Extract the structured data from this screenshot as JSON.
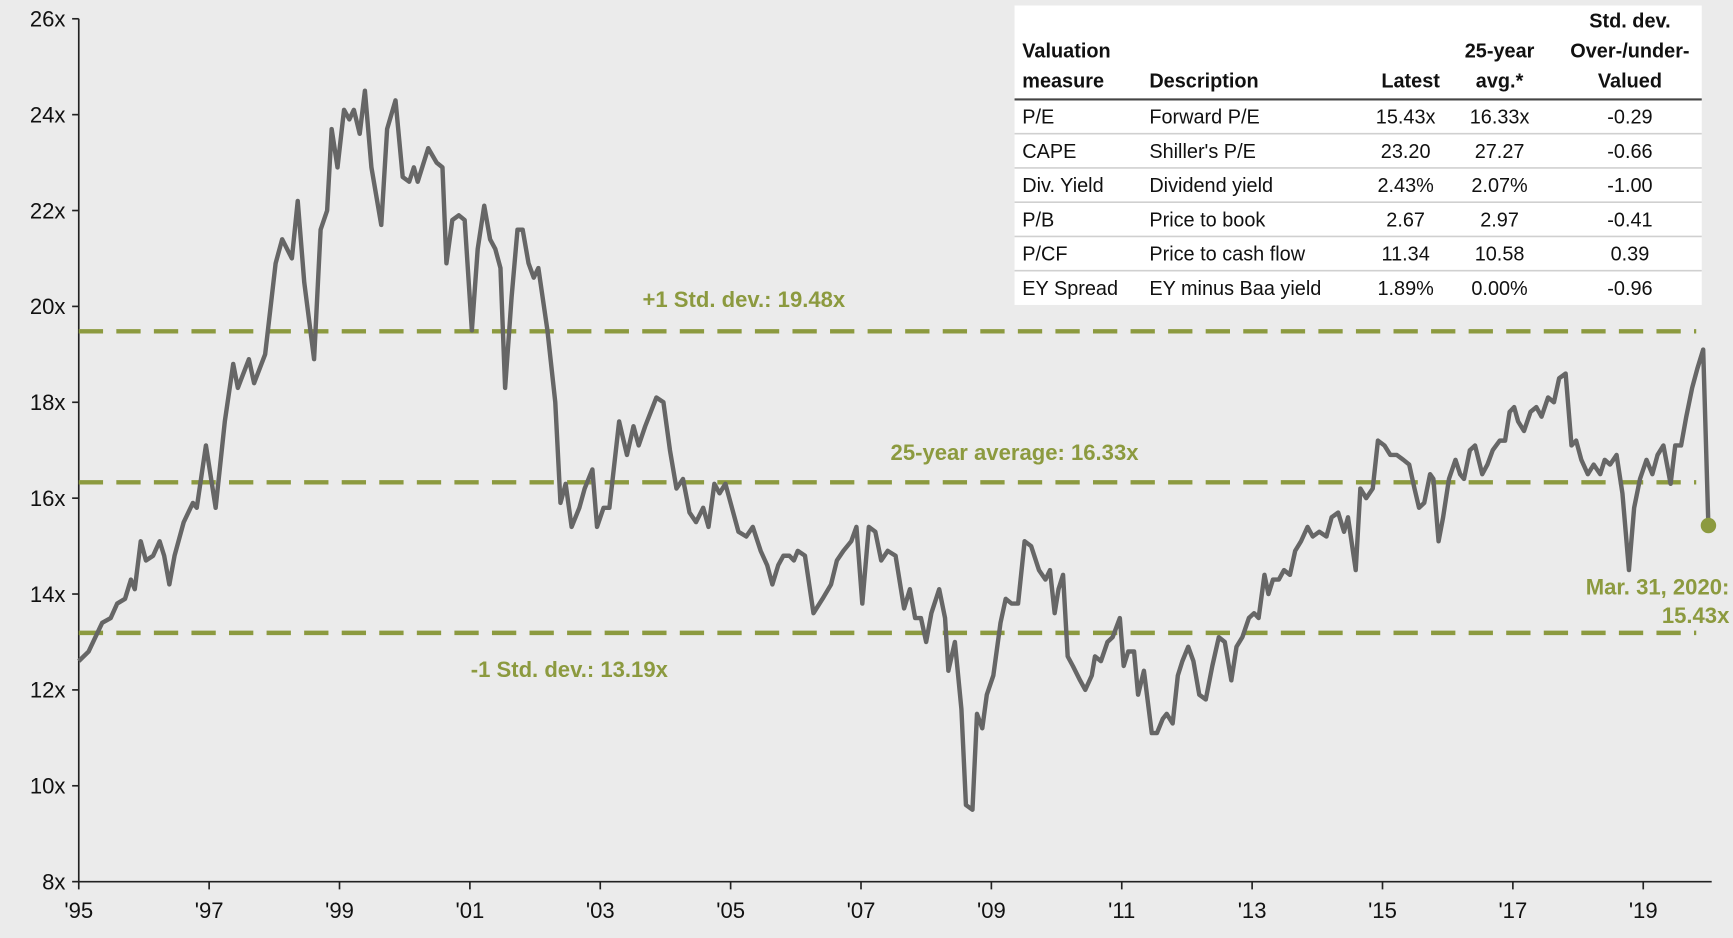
{
  "chart_data": {
    "type": "line",
    "x": [
      1995.0,
      1995.15,
      1995.36,
      1995.49,
      1995.59,
      1995.71,
      1995.8,
      1995.86,
      1995.95,
      1996.03,
      1996.14,
      1996.24,
      1996.31,
      1996.39,
      1996.47,
      1996.61,
      1996.75,
      1996.81,
      1996.95,
      1997.1,
      1997.24,
      1997.37,
      1997.44,
      1997.61,
      1997.69,
      1997.86,
      1998.02,
      1998.12,
      1998.27,
      1998.36,
      1998.46,
      1998.61,
      1998.71,
      1998.81,
      1998.88,
      1998.97,
      1999.07,
      1999.15,
      1999.22,
      1999.31,
      1999.39,
      1999.49,
      1999.64,
      1999.73,
      1999.86,
      1999.97,
      2000.07,
      2000.14,
      2000.2,
      2000.36,
      2000.49,
      2000.58,
      2000.64,
      2000.73,
      2000.83,
      2000.92,
      2001.03,
      2001.12,
      2001.22,
      2001.31,
      2001.39,
      2001.47,
      2001.54,
      2001.64,
      2001.73,
      2001.81,
      2001.9,
      2001.98,
      2002.05,
      2002.19,
      2002.31,
      2002.39,
      2002.47,
      2002.56,
      2002.68,
      2002.76,
      2002.88,
      2002.95,
      2003.05,
      2003.14,
      2003.29,
      2003.41,
      2003.51,
      2003.59,
      2003.69,
      2003.86,
      2003.97,
      2004.07,
      2004.17,
      2004.27,
      2004.37,
      2004.47,
      2004.58,
      2004.66,
      2004.75,
      2004.83,
      2004.92,
      2005.0,
      2005.12,
      2005.24,
      2005.34,
      2005.46,
      2005.56,
      2005.64,
      2005.73,
      2005.81,
      2005.9,
      2005.97,
      2006.03,
      2006.14,
      2006.27,
      2006.41,
      2006.54,
      2006.63,
      2006.73,
      2006.85,
      2006.93,
      2007.02,
      2007.12,
      2007.22,
      2007.31,
      2007.41,
      2007.53,
      2007.66,
      2007.75,
      2007.83,
      2007.92,
      2008.0,
      2008.08,
      2008.2,
      2008.29,
      2008.34,
      2008.44,
      2008.54,
      2008.61,
      2008.71,
      2008.78,
      2008.86,
      2008.93,
      2009.03,
      2009.14,
      2009.22,
      2009.31,
      2009.41,
      2009.51,
      2009.61,
      2009.73,
      2009.83,
      2009.9,
      2009.97,
      2010.03,
      2010.1,
      2010.17,
      2010.25,
      2010.36,
      2010.44,
      2010.54,
      2010.59,
      2010.68,
      2010.78,
      2010.86,
      2010.97,
      2011.03,
      2011.1,
      2011.19,
      2011.25,
      2011.34,
      2011.46,
      2011.54,
      2011.63,
      2011.69,
      2011.78,
      2011.86,
      2011.93,
      2012.02,
      2012.1,
      2012.19,
      2012.29,
      2012.39,
      2012.49,
      2012.58,
      2012.68,
      2012.76,
      2012.85,
      2012.95,
      2013.03,
      2013.1,
      2013.19,
      2013.25,
      2013.32,
      2013.41,
      2013.49,
      2013.58,
      2013.66,
      2013.75,
      2013.85,
      2013.93,
      2014.03,
      2014.14,
      2014.22,
      2014.32,
      2014.41,
      2014.47,
      2014.59,
      2014.66,
      2014.75,
      2014.85,
      2014.93,
      2015.03,
      2015.12,
      2015.22,
      2015.32,
      2015.41,
      2015.49,
      2015.56,
      2015.64,
      2015.73,
      2015.78,
      2015.86,
      2015.93,
      2016.02,
      2016.12,
      2016.19,
      2016.25,
      2016.34,
      2016.42,
      2016.53,
      2016.61,
      2016.69,
      2016.8,
      2016.88,
      2016.95,
      2017.02,
      2017.08,
      2017.17,
      2017.27,
      2017.36,
      2017.44,
      2017.54,
      2017.63,
      2017.71,
      2017.81,
      2017.9,
      2017.97,
      2018.05,
      2018.15,
      2018.24,
      2018.34,
      2018.41,
      2018.49,
      2018.59,
      2018.68,
      2018.78,
      2018.86,
      2018.95,
      2019.05,
      2019.14,
      2019.22,
      2019.31,
      2019.42,
      2019.49,
      2019.58,
      2019.66,
      2019.75,
      2019.83,
      2019.92,
      2020.0
    ],
    "values": [
      12.6,
      12.8,
      13.4,
      13.5,
      13.8,
      13.9,
      14.3,
      14.1,
      15.1,
      14.7,
      14.8,
      15.1,
      14.8,
      14.2,
      14.8,
      15.5,
      15.9,
      15.8,
      17.1,
      15.8,
      17.6,
      18.8,
      18.3,
      18.9,
      18.4,
      19.0,
      20.9,
      21.4,
      21.0,
      22.2,
      20.5,
      18.9,
      21.6,
      22.0,
      23.7,
      22.9,
      24.1,
      23.9,
      24.1,
      23.6,
      24.5,
      22.9,
      21.7,
      23.7,
      24.3,
      22.7,
      22.6,
      22.9,
      22.6,
      23.3,
      23.0,
      22.9,
      20.9,
      21.8,
      21.9,
      21.8,
      19.5,
      21.2,
      22.1,
      21.4,
      21.2,
      20.8,
      18.3,
      20.2,
      21.6,
      21.6,
      20.9,
      20.6,
      20.8,
      19.5,
      18.0,
      15.9,
      16.3,
      15.4,
      15.8,
      16.2,
      16.6,
      15.4,
      15.8,
      15.8,
      17.6,
      16.9,
      17.5,
      17.1,
      17.5,
      18.1,
      18.0,
      17.0,
      16.2,
      16.4,
      15.7,
      15.5,
      15.8,
      15.4,
      16.3,
      16.1,
      16.3,
      15.9,
      15.3,
      15.2,
      15.4,
      14.9,
      14.6,
      14.2,
      14.6,
      14.8,
      14.8,
      14.7,
      14.9,
      14.8,
      13.6,
      13.9,
      14.2,
      14.7,
      14.9,
      15.1,
      15.4,
      13.8,
      15.4,
      15.3,
      14.7,
      14.9,
      14.8,
      13.7,
      14.1,
      13.5,
      13.5,
      13.0,
      13.6,
      14.1,
      13.5,
      12.4,
      13.0,
      11.6,
      9.6,
      9.5,
      11.5,
      11.2,
      11.9,
      12.3,
      13.4,
      13.9,
      13.8,
      13.8,
      15.1,
      15.0,
      14.5,
      14.3,
      14.5,
      13.6,
      14.1,
      14.4,
      12.7,
      12.5,
      12.2,
      12.0,
      12.3,
      12.7,
      12.6,
      13.0,
      13.1,
      13.5,
      12.5,
      12.8,
      12.8,
      11.9,
      12.4,
      11.1,
      11.1,
      11.4,
      11.5,
      11.3,
      12.3,
      12.6,
      12.9,
      12.6,
      11.9,
      11.8,
      12.5,
      13.1,
      13.0,
      12.2,
      12.9,
      13.1,
      13.5,
      13.6,
      13.5,
      14.4,
      14.0,
      14.3,
      14.3,
      14.5,
      14.4,
      14.9,
      15.1,
      15.4,
      15.2,
      15.3,
      15.2,
      15.6,
      15.7,
      15.3,
      15.6,
      14.5,
      16.2,
      16.0,
      16.2,
      17.2,
      17.1,
      16.9,
      16.9,
      16.8,
      16.7,
      16.2,
      15.8,
      15.9,
      16.5,
      16.4,
      15.1,
      15.6,
      16.4,
      16.8,
      16.5,
      16.4,
      17.0,
      17.1,
      16.5,
      16.7,
      17.0,
      17.2,
      17.2,
      17.8,
      17.9,
      17.6,
      17.4,
      17.8,
      17.9,
      17.7,
      18.1,
      18.0,
      18.5,
      18.6,
      17.1,
      17.2,
      16.8,
      16.5,
      16.7,
      16.5,
      16.8,
      16.7,
      16.9,
      16.1,
      14.5,
      15.8,
      16.4,
      16.8,
      16.5,
      16.9,
      17.1,
      16.3,
      17.1,
      17.1,
      17.7,
      18.3,
      18.7,
      19.1,
      15.43
    ],
    "color": "#666666",
    "accent_color": "#8c9a3f",
    "xlim": [
      1995,
      2020.05
    ],
    "xticks": [
      {
        "value": 1995,
        "label": "'95"
      },
      {
        "value": 1997,
        "label": "'97"
      },
      {
        "value": 1999,
        "label": "'99"
      },
      {
        "value": 2001,
        "label": "'01"
      },
      {
        "value": 2003,
        "label": "'03"
      },
      {
        "value": 2005,
        "label": "'05"
      },
      {
        "value": 2007,
        "label": "'07"
      },
      {
        "value": 2009,
        "label": "'09"
      },
      {
        "value": 2011,
        "label": "'11"
      },
      {
        "value": 2013,
        "label": "'13"
      },
      {
        "value": 2015,
        "label": "'15"
      },
      {
        "value": 2017,
        "label": "'17"
      },
      {
        "value": 2019,
        "label": "'19"
      }
    ],
    "ylim": [
      8,
      26
    ],
    "yticks": [
      {
        "value": 8,
        "label": "8x"
      },
      {
        "value": 10,
        "label": "10x"
      },
      {
        "value": 12,
        "label": "12x"
      },
      {
        "value": 14,
        "label": "14x"
      },
      {
        "value": 16,
        "label": "16x"
      },
      {
        "value": 18,
        "label": "18x"
      },
      {
        "value": 20,
        "label": "20x"
      },
      {
        "value": 22,
        "label": "22x"
      },
      {
        "value": 24,
        "label": "24x"
      },
      {
        "value": 26,
        "label": "26x"
      }
    ],
    "reference_lines": [
      {
        "value": 19.48,
        "label": "+1 Std. dev.: 19.48x"
      },
      {
        "value": 16.33,
        "label": "25-year average: 16.33x"
      },
      {
        "value": 13.19,
        "label": "-1 Std. dev.: 13.19x"
      }
    ],
    "annotation": [
      "Mar. 31, 2020:",
      "15.43x"
    ]
  },
  "table": {
    "headers": [
      [
        "Valuation",
        "measure"
      ],
      [
        "Description"
      ],
      [
        "Latest"
      ],
      [
        "25-year",
        "avg.*"
      ],
      [
        "Std. dev.",
        "Over-/under-",
        "Valued"
      ]
    ],
    "rows": [
      [
        "P/E",
        "Forward P/E",
        "15.43x",
        "16.33x",
        "-0.29"
      ],
      [
        "CAPE",
        "Shiller's P/E",
        "23.20",
        "27.27",
        "-0.66"
      ],
      [
        "Div. Yield",
        "Dividend yield",
        "2.43%",
        "2.07%",
        "-1.00"
      ],
      [
        "P/B",
        "Price to book",
        "2.67",
        "2.97",
        "-0.41"
      ],
      [
        "P/CF",
        "Price to cash flow",
        "11.34",
        "10.58",
        "0.39"
      ],
      [
        "EY Spread",
        "EY minus Baa yield",
        "1.89%",
        "0.00%",
        "-0.96"
      ]
    ]
  }
}
